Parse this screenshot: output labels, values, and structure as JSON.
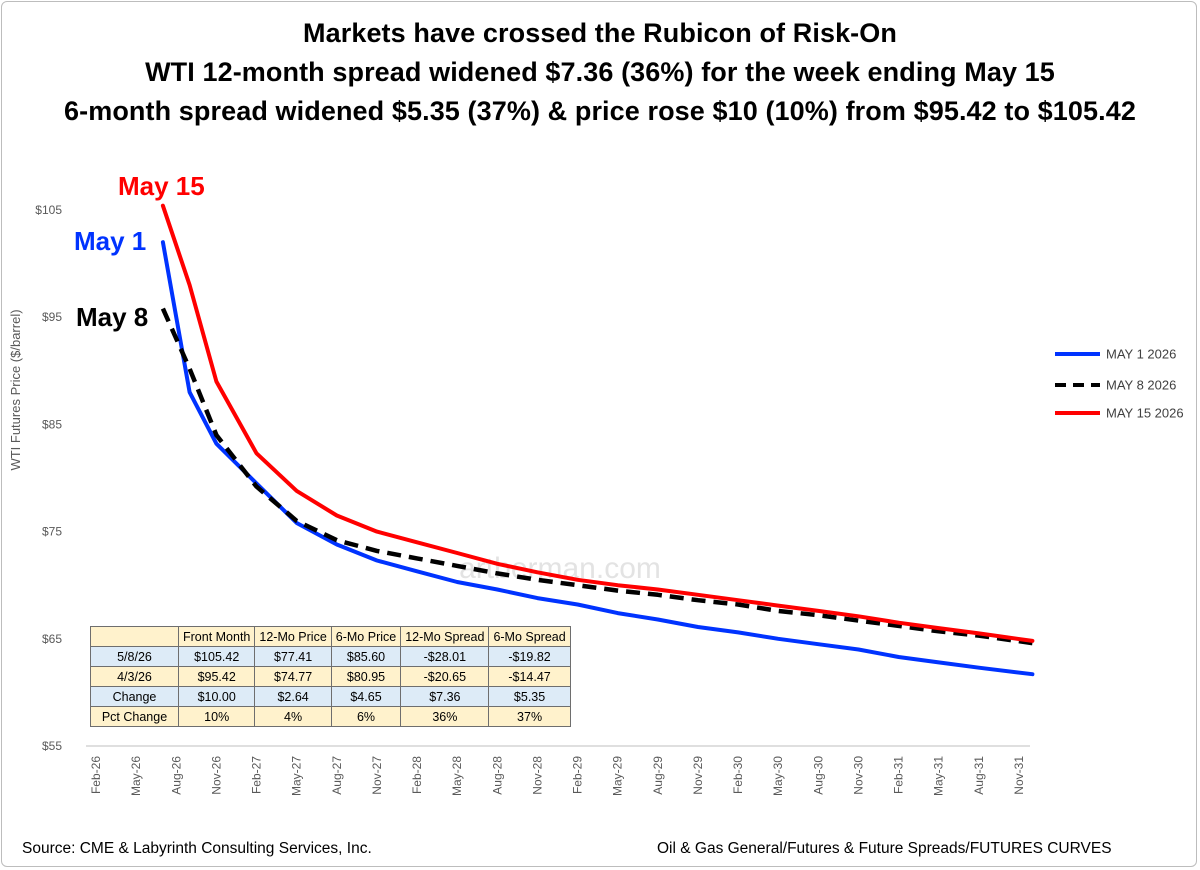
{
  "title_lines": [
    "Markets have crossed the Rubicon of Risk-On",
    "WTI  12-month spread widened $7.36 (36%) for the week ending May 15",
    "6-month spread widened $5.35 (37%) & price rose $10 (10%) from $95.42 to $105.42"
  ],
  "watermark": "artberman.com",
  "annotations": [
    {
      "text": "May 15",
      "color": "#ff0000"
    },
    {
      "text": "May 1",
      "color": "#0033ff"
    },
    {
      "text": "May 8",
      "color": "#000000"
    }
  ],
  "table": {
    "headers": [
      "",
      "Front Month",
      "12-Mo Price",
      "6-Mo Price",
      "12-Mo Spread",
      "6-Mo Spread"
    ],
    "rows": [
      [
        "5/8/26",
        "$105.42",
        "$77.41",
        "$85.60",
        "-$28.01",
        "-$19.82"
      ],
      [
        "4/3/26",
        "$95.42",
        "$74.77",
        "$80.95",
        "-$20.65",
        "-$14.47"
      ],
      [
        "Change",
        "$10.00",
        "$2.64",
        "$4.65",
        "$7.36",
        "$5.35"
      ],
      [
        "Pct Change",
        "10%",
        "4%",
        "6%",
        "36%",
        "37%"
      ]
    ]
  },
  "footer": {
    "source": "Source: CME & Labyrinth Consulting Services, Inc.",
    "path": "Oil & Gas General/Futures & Future Spreads/FUTURES CURVES"
  },
  "chart_data": {
    "type": "line",
    "title": "Markets have crossed the Rubicon of Risk-On",
    "xlabel": "",
    "ylabel": "WTI Futures Price ($/barrel)",
    "x_ticks": [
      "Feb-26",
      "May-26",
      "Aug-26",
      "Nov-26",
      "Feb-27",
      "May-27",
      "Aug-27",
      "Nov-27",
      "Feb-28",
      "May-28",
      "Aug-28",
      "Nov-28",
      "Feb-29",
      "May-29",
      "Aug-29",
      "Nov-29",
      "Feb-30",
      "May-30",
      "Aug-30",
      "Nov-30",
      "Feb-31",
      "May-31",
      "Aug-31",
      "Nov-31"
    ],
    "y_ticks": [
      "$105",
      "$95",
      "$85",
      "$75",
      "$65",
      "$55"
    ],
    "ylim": [
      55,
      105
    ],
    "grid": false,
    "legend_position": "right",
    "series": [
      {
        "name": "MAY 1 2026",
        "color": "#0033ff",
        "dash": "solid",
        "x": [
          "Jul-26",
          "Sep-26",
          "Nov-26",
          "Feb-27",
          "May-27",
          "Aug-27",
          "Nov-27",
          "Feb-28",
          "May-28",
          "Aug-28",
          "Nov-28",
          "Feb-29",
          "May-29",
          "Aug-29",
          "Nov-29",
          "Feb-30",
          "May-30",
          "Aug-30",
          "Nov-30",
          "Feb-31",
          "May-31",
          "Aug-31",
          "Dec-31"
        ],
        "y": [
          102.0,
          88.0,
          83.2,
          79.5,
          75.8,
          73.8,
          72.3,
          71.3,
          70.3,
          69.6,
          68.8,
          68.2,
          67.4,
          66.8,
          66.1,
          65.6,
          65.0,
          64.5,
          64.0,
          63.3,
          62.8,
          62.3,
          61.7
        ]
      },
      {
        "name": "MAY 8 2026",
        "color": "#000000",
        "dash": "dashed",
        "x": [
          "Jul-26",
          "Sep-26",
          "Nov-26",
          "Feb-27",
          "May-27",
          "Aug-27",
          "Nov-27",
          "Feb-28",
          "May-28",
          "Aug-28",
          "Nov-28",
          "Feb-29",
          "May-29",
          "Aug-29",
          "Nov-29",
          "Feb-30",
          "May-30",
          "Aug-30",
          "Nov-30",
          "Feb-31",
          "May-31",
          "Aug-31",
          "Dec-31"
        ],
        "y": [
          95.8,
          90.2,
          84.0,
          79.2,
          76.0,
          74.2,
          73.2,
          72.5,
          71.8,
          71.1,
          70.5,
          70.0,
          69.5,
          69.1,
          68.6,
          68.2,
          67.6,
          67.2,
          66.7,
          66.2,
          65.7,
          65.3,
          64.6
        ]
      },
      {
        "name": "MAY 15 2026",
        "color": "#ff0000",
        "dash": "solid",
        "x": [
          "Jul-26",
          "Sep-26",
          "Nov-26",
          "Feb-27",
          "May-27",
          "Aug-27",
          "Nov-27",
          "Feb-28",
          "May-28",
          "Aug-28",
          "Nov-28",
          "Feb-29",
          "May-29",
          "Aug-29",
          "Nov-29",
          "Feb-30",
          "May-30",
          "Aug-30",
          "Nov-30",
          "Feb-31",
          "May-31",
          "Aug-31",
          "Dec-31"
        ],
        "y": [
          105.4,
          98.0,
          89.0,
          82.3,
          78.8,
          76.5,
          75.0,
          74.0,
          73.0,
          72.0,
          71.2,
          70.5,
          70.0,
          69.6,
          69.1,
          68.6,
          68.1,
          67.6,
          67.1,
          66.5,
          66.0,
          65.5,
          64.8
        ]
      }
    ]
  }
}
